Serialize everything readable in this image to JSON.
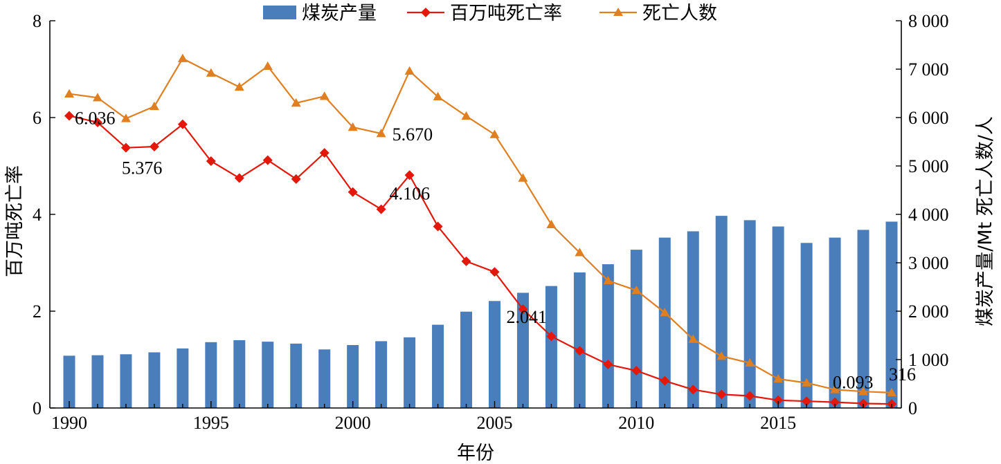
{
  "chart_data": {
    "type": "bar+line",
    "x": [
      1990,
      1991,
      1992,
      1993,
      1994,
      1995,
      1996,
      1997,
      1998,
      1999,
      2000,
      2001,
      2002,
      2003,
      2004,
      2005,
      2006,
      2007,
      2008,
      2009,
      2010,
      2011,
      2012,
      2013,
      2014,
      2015,
      2016,
      2017,
      2018,
      2019
    ],
    "xlabel": "年份",
    "x_ticks": [
      "1990",
      "1995",
      "2000",
      "2005",
      "2010",
      "2015"
    ],
    "y_left": {
      "label": "百万吨死亡率",
      "lim": [
        0,
        8
      ],
      "ticks": [
        "0",
        "2",
        "4",
        "6",
        "8"
      ]
    },
    "y_right": {
      "label": "煤炭产量/Mt   死亡人数/人",
      "lim": [
        0,
        8000
      ],
      "ticks": [
        "0",
        "1 000",
        "2 000",
        "3 000",
        "4 000",
        "5 000",
        "6 000",
        "7 000",
        "8 000"
      ]
    },
    "legend_position": "top",
    "series": [
      {
        "name": "煤炭产量",
        "kind": "bar",
        "axis": "right",
        "color": "#4a7ebb",
        "values": [
          1080,
          1090,
          1110,
          1150,
          1230,
          1360,
          1400,
          1370,
          1330,
          1210,
          1300,
          1380,
          1460,
          1720,
          1990,
          2210,
          2380,
          2520,
          2800,
          2970,
          3270,
          3520,
          3650,
          3970,
          3880,
          3750,
          3410,
          3520,
          3680,
          3850
        ]
      },
      {
        "name": "百万吨死亡率",
        "kind": "line",
        "marker": "diamond",
        "axis": "left",
        "color": "#e3170a",
        "values": [
          6.036,
          5.9,
          5.376,
          5.4,
          5.86,
          5.1,
          4.75,
          5.12,
          4.73,
          5.27,
          4.46,
          4.106,
          4.81,
          3.75,
          3.03,
          2.81,
          2.041,
          1.48,
          1.18,
          0.9,
          0.77,
          0.56,
          0.38,
          0.28,
          0.25,
          0.16,
          0.14,
          0.12,
          0.093,
          0.083
        ]
      },
      {
        "name": "死亡人数",
        "kind": "line",
        "marker": "triangle",
        "axis": "right",
        "color": "#e07f1f",
        "values": [
          6490,
          6410,
          5980,
          6230,
          7220,
          6920,
          6630,
          7060,
          6300,
          6440,
          5800,
          5670,
          6960,
          6430,
          6030,
          5650,
          4750,
          3790,
          3210,
          2630,
          2430,
          1970,
          1420,
          1070,
          930,
          600,
          520,
          380,
          340,
          316
        ]
      }
    ],
    "annotations": [
      {
        "text": "6.036",
        "x": 1990,
        "series": 1
      },
      {
        "text": "5.376",
        "x": 1992,
        "series": 1
      },
      {
        "text": "5.670",
        "x": 2001,
        "series": 2
      },
      {
        "text": "4.106",
        "x": 2001,
        "series": 1
      },
      {
        "text": "2.041",
        "x": 2006,
        "series": 1
      },
      {
        "text": "0.093",
        "x": 2018,
        "series": 1
      },
      {
        "text": "316",
        "x": 2019,
        "series": 2
      }
    ]
  }
}
